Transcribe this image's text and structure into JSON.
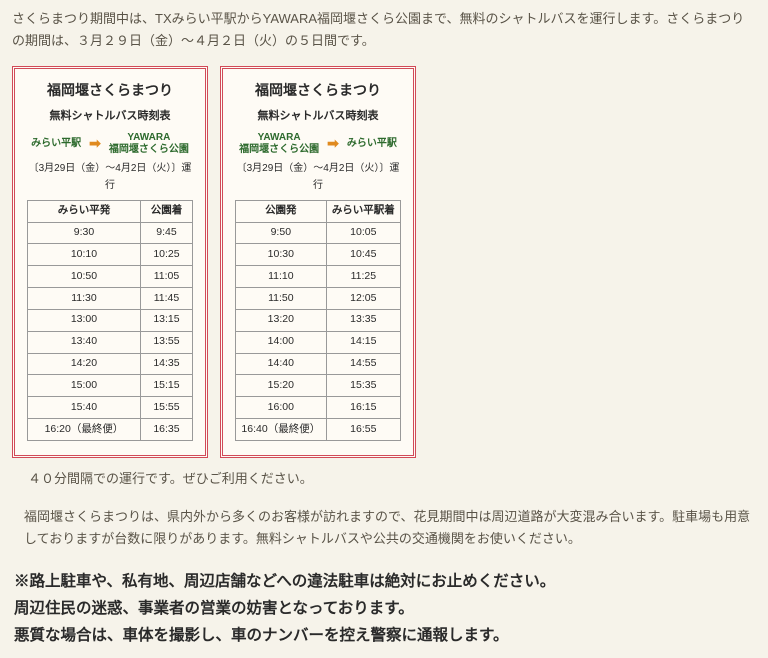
{
  "intro": "さくらまつり期間中は、TXみらい平駅からYAWARA福岡堰さくら公園まで、無料のシャトルバスを運行します。さくらまつりの期間は、３月２９日（金）～４月２日（火）の５日間です。",
  "card_title": "福岡堰さくらまつり",
  "card_subtitle": "無料シャトルバス時刻表",
  "stop_mirai": "みらい平駅",
  "stop_yawara_l1": "YAWARA",
  "stop_yawara_l2": "福岡堰さくら公園",
  "arrow": "➡",
  "period": "〔3月29日（金）～4月2日（火）〕運行",
  "left": {
    "h1": "みらい平発",
    "h2": "公園着",
    "rows": [
      [
        "9:30",
        "9:45"
      ],
      [
        "10:10",
        "10:25"
      ],
      [
        "10:50",
        "11:05"
      ],
      [
        "11:30",
        "11:45"
      ],
      [
        "13:00",
        "13:15"
      ],
      [
        "13:40",
        "13:55"
      ],
      [
        "14:20",
        "14:35"
      ],
      [
        "15:00",
        "15:15"
      ],
      [
        "15:40",
        "15:55"
      ],
      [
        "16:20（最終便）",
        "16:35"
      ]
    ]
  },
  "right": {
    "h1": "公園発",
    "h2": "みらい平駅着",
    "rows": [
      [
        "9:50",
        "10:05"
      ],
      [
        "10:30",
        "10:45"
      ],
      [
        "11:10",
        "11:25"
      ],
      [
        "11:50",
        "12:05"
      ],
      [
        "13:20",
        "13:35"
      ],
      [
        "14:00",
        "14:15"
      ],
      [
        "14:40",
        "14:55"
      ],
      [
        "15:20",
        "15:35"
      ],
      [
        "16:00",
        "16:15"
      ],
      [
        "16:40（最終便）",
        "16:55"
      ]
    ]
  },
  "note40": "４０分間隔での運行です。ぜひご利用ください。",
  "para2": "福岡堰さくらまつりは、県内外から多くのお客様が訪れますので、花見期間中は周辺道路が大変混み合います。駐車場も用意しておりますが台数に限りがあります。無料シャトルバスや公共の交通機関をお使いください。",
  "warn1": "※路上駐車や、私有地、周辺店舗などへの違法駐車は絶対にお止めください。",
  "warn2": "周辺住民の迷惑、事業者の営業の妨害となっております。",
  "warn3": "悪質な場合は、車体を撮影し、車のナンバーを控え警察に通報します。"
}
